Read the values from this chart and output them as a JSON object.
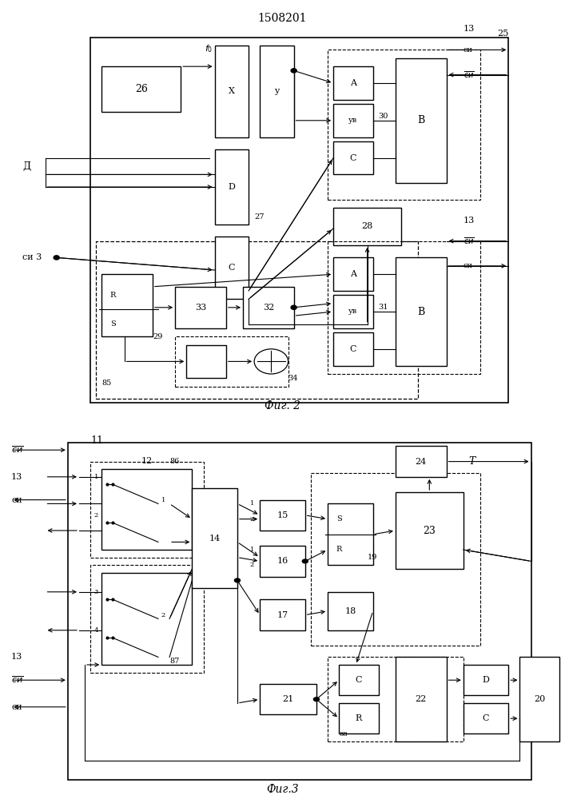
{
  "title": "1508201",
  "fig2_caption": "Фиг. 2",
  "fig3_caption": "Фиг.3",
  "bg_color": "#ffffff",
  "lc": "#000000"
}
